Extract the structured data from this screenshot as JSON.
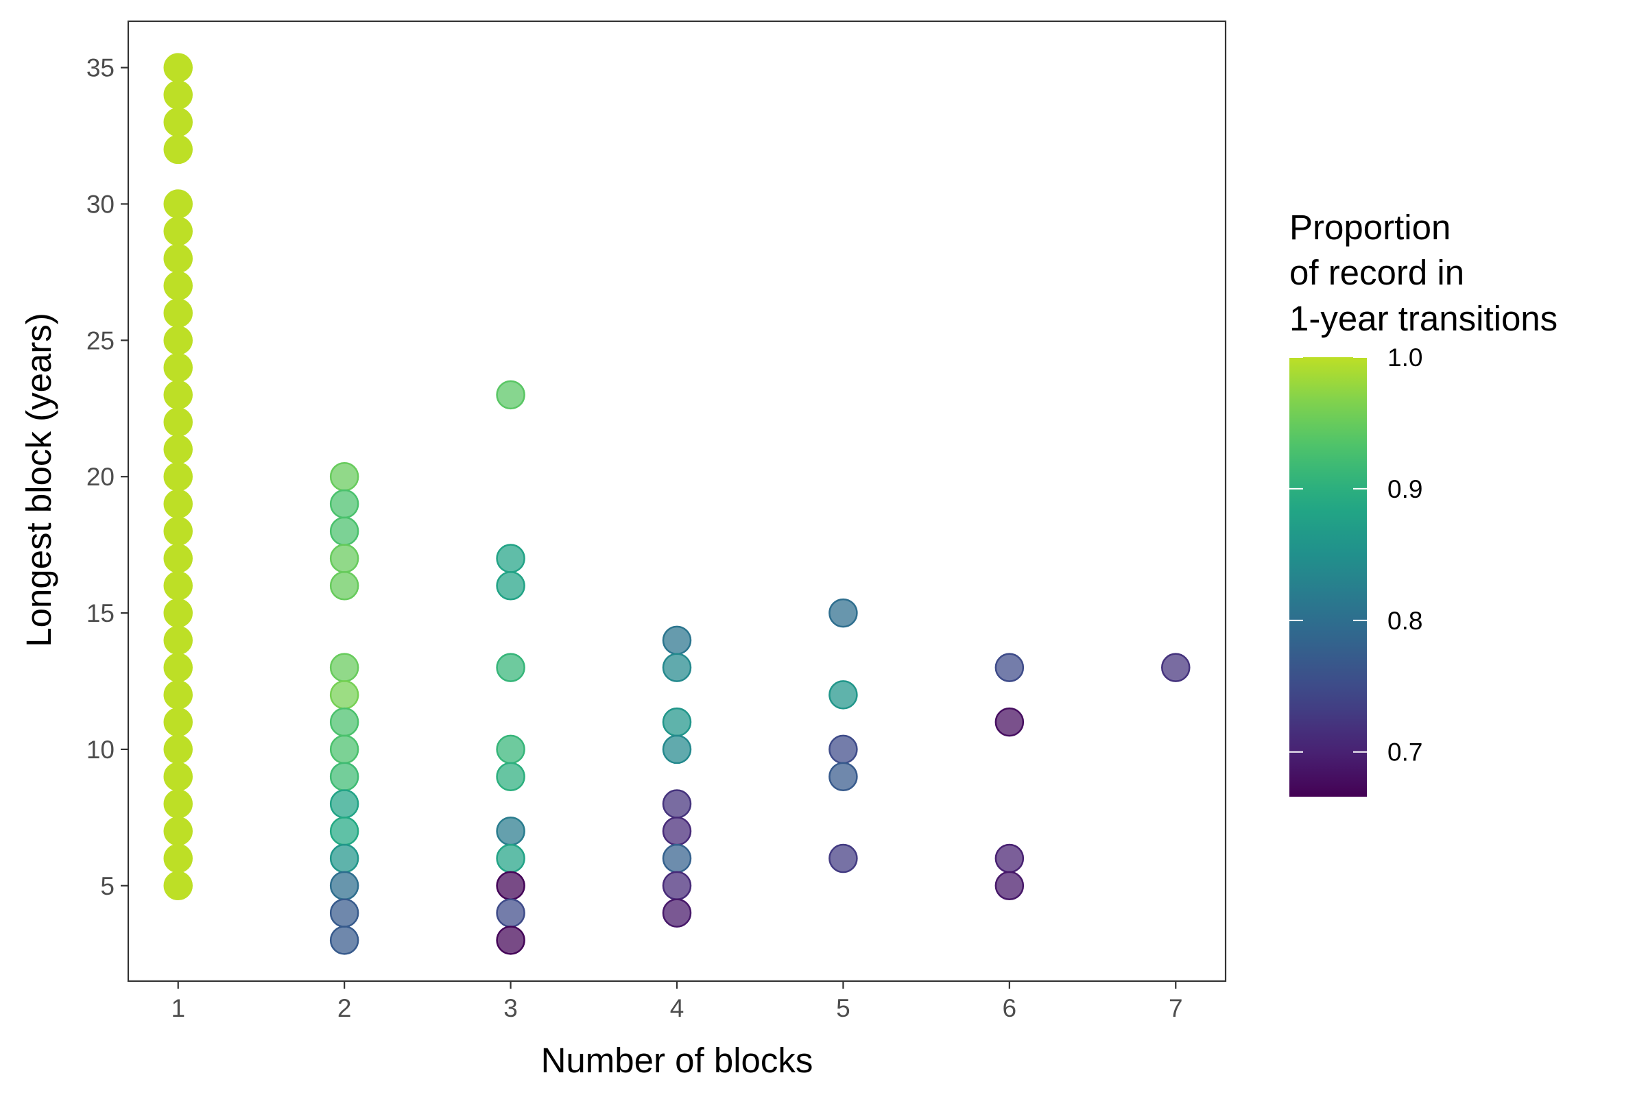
{
  "chart_data": {
    "type": "scatter",
    "xlabel": "Number of blocks",
    "ylabel": "Longest block (years)",
    "xlim": [
      0.7,
      7.3
    ],
    "ylim": [
      1.5,
      36.7
    ],
    "x_ticks": [
      1,
      2,
      3,
      4,
      5,
      6,
      7
    ],
    "y_ticks": [
      5,
      10,
      15,
      20,
      25,
      30,
      35
    ],
    "grid": false,
    "legend": {
      "title_lines": [
        "Proportion",
        "of record in",
        "1-year transitions"
      ],
      "placement": "right",
      "type": "colorbar",
      "range": [
        0.666,
        1.0
      ],
      "ticks": [
        1.0,
        0.9,
        0.8,
        0.7
      ],
      "tick_labels": [
        "1.0",
        "0.9",
        "0.8",
        "0.7"
      ],
      "palette": "viridis"
    },
    "points": [
      {
        "x": 1,
        "y": 35,
        "c": 1.0
      },
      {
        "x": 1,
        "y": 34,
        "c": 1.0
      },
      {
        "x": 1,
        "y": 33,
        "c": 1.0
      },
      {
        "x": 1,
        "y": 32,
        "c": 1.0
      },
      {
        "x": 1,
        "y": 30,
        "c": 1.0
      },
      {
        "x": 1,
        "y": 29,
        "c": 1.0
      },
      {
        "x": 1,
        "y": 28,
        "c": 1.0
      },
      {
        "x": 1,
        "y": 27,
        "c": 1.0
      },
      {
        "x": 1,
        "y": 26,
        "c": 1.0
      },
      {
        "x": 1,
        "y": 25,
        "c": 1.0
      },
      {
        "x": 1,
        "y": 24,
        "c": 1.0
      },
      {
        "x": 1,
        "y": 23,
        "c": 1.0
      },
      {
        "x": 1,
        "y": 22,
        "c": 1.0
      },
      {
        "x": 1,
        "y": 21,
        "c": 1.0
      },
      {
        "x": 1,
        "y": 20,
        "c": 1.0
      },
      {
        "x": 1,
        "y": 19,
        "c": 1.0
      },
      {
        "x": 1,
        "y": 18,
        "c": 1.0
      },
      {
        "x": 1,
        "y": 17,
        "c": 1.0
      },
      {
        "x": 1,
        "y": 16,
        "c": 1.0
      },
      {
        "x": 1,
        "y": 15,
        "c": 1.0
      },
      {
        "x": 1,
        "y": 14,
        "c": 1.0
      },
      {
        "x": 1,
        "y": 13,
        "c": 1.0
      },
      {
        "x": 1,
        "y": 12,
        "c": 1.0
      },
      {
        "x": 1,
        "y": 11,
        "c": 1.0
      },
      {
        "x": 1,
        "y": 10,
        "c": 1.0
      },
      {
        "x": 1,
        "y": 9,
        "c": 1.0
      },
      {
        "x": 1,
        "y": 8,
        "c": 1.0
      },
      {
        "x": 1,
        "y": 7,
        "c": 1.0
      },
      {
        "x": 1,
        "y": 6,
        "c": 1.0
      },
      {
        "x": 1,
        "y": 5,
        "c": 1.0
      },
      {
        "x": 2,
        "y": 20,
        "c": 0.95
      },
      {
        "x": 2,
        "y": 19,
        "c": 0.93
      },
      {
        "x": 2,
        "y": 18,
        "c": 0.93
      },
      {
        "x": 2,
        "y": 17,
        "c": 0.95
      },
      {
        "x": 2,
        "y": 16,
        "c": 0.95
      },
      {
        "x": 2,
        "y": 13,
        "c": 0.95
      },
      {
        "x": 2,
        "y": 12,
        "c": 0.96
      },
      {
        "x": 2,
        "y": 11,
        "c": 0.93
      },
      {
        "x": 2,
        "y": 10,
        "c": 0.93
      },
      {
        "x": 2,
        "y": 9,
        "c": 0.92
      },
      {
        "x": 2,
        "y": 8,
        "c": 0.88
      },
      {
        "x": 2,
        "y": 7,
        "c": 0.89
      },
      {
        "x": 2,
        "y": 6,
        "c": 0.86
      },
      {
        "x": 2,
        "y": 5,
        "c": 0.8
      },
      {
        "x": 2,
        "y": 4,
        "c": 0.77
      },
      {
        "x": 2,
        "y": 3,
        "c": 0.77
      },
      {
        "x": 3,
        "y": 23,
        "c": 0.94
      },
      {
        "x": 3,
        "y": 17,
        "c": 0.88
      },
      {
        "x": 3,
        "y": 16,
        "c": 0.88
      },
      {
        "x": 3,
        "y": 13,
        "c": 0.91
      },
      {
        "x": 3,
        "y": 10,
        "c": 0.91
      },
      {
        "x": 3,
        "y": 9,
        "c": 0.9
      },
      {
        "x": 3,
        "y": 7,
        "c": 0.82
      },
      {
        "x": 3,
        "y": 6,
        "c": 0.88
      },
      {
        "x": 3,
        "y": 5,
        "c": 0.67
      },
      {
        "x": 3,
        "y": 4,
        "c": 0.75
      },
      {
        "x": 3,
        "y": 3,
        "c": 0.67
      },
      {
        "x": 4,
        "y": 14,
        "c": 0.81
      },
      {
        "x": 4,
        "y": 13,
        "c": 0.84
      },
      {
        "x": 4,
        "y": 11,
        "c": 0.86
      },
      {
        "x": 4,
        "y": 10,
        "c": 0.84
      },
      {
        "x": 4,
        "y": 8,
        "c": 0.72
      },
      {
        "x": 4,
        "y": 7,
        "c": 0.71
      },
      {
        "x": 4,
        "y": 6,
        "c": 0.78
      },
      {
        "x": 4,
        "y": 5,
        "c": 0.71
      },
      {
        "x": 4,
        "y": 4,
        "c": 0.69
      },
      {
        "x": 5,
        "y": 15,
        "c": 0.8
      },
      {
        "x": 5,
        "y": 12,
        "c": 0.86
      },
      {
        "x": 5,
        "y": 10,
        "c": 0.75
      },
      {
        "x": 5,
        "y": 9,
        "c": 0.77
      },
      {
        "x": 5,
        "y": 6,
        "c": 0.73
      },
      {
        "x": 6,
        "y": 13,
        "c": 0.75
      },
      {
        "x": 6,
        "y": 11,
        "c": 0.68
      },
      {
        "x": 6,
        "y": 6,
        "c": 0.7
      },
      {
        "x": 6,
        "y": 5,
        "c": 0.69
      },
      {
        "x": 7,
        "y": 13,
        "c": 0.72
      }
    ]
  }
}
